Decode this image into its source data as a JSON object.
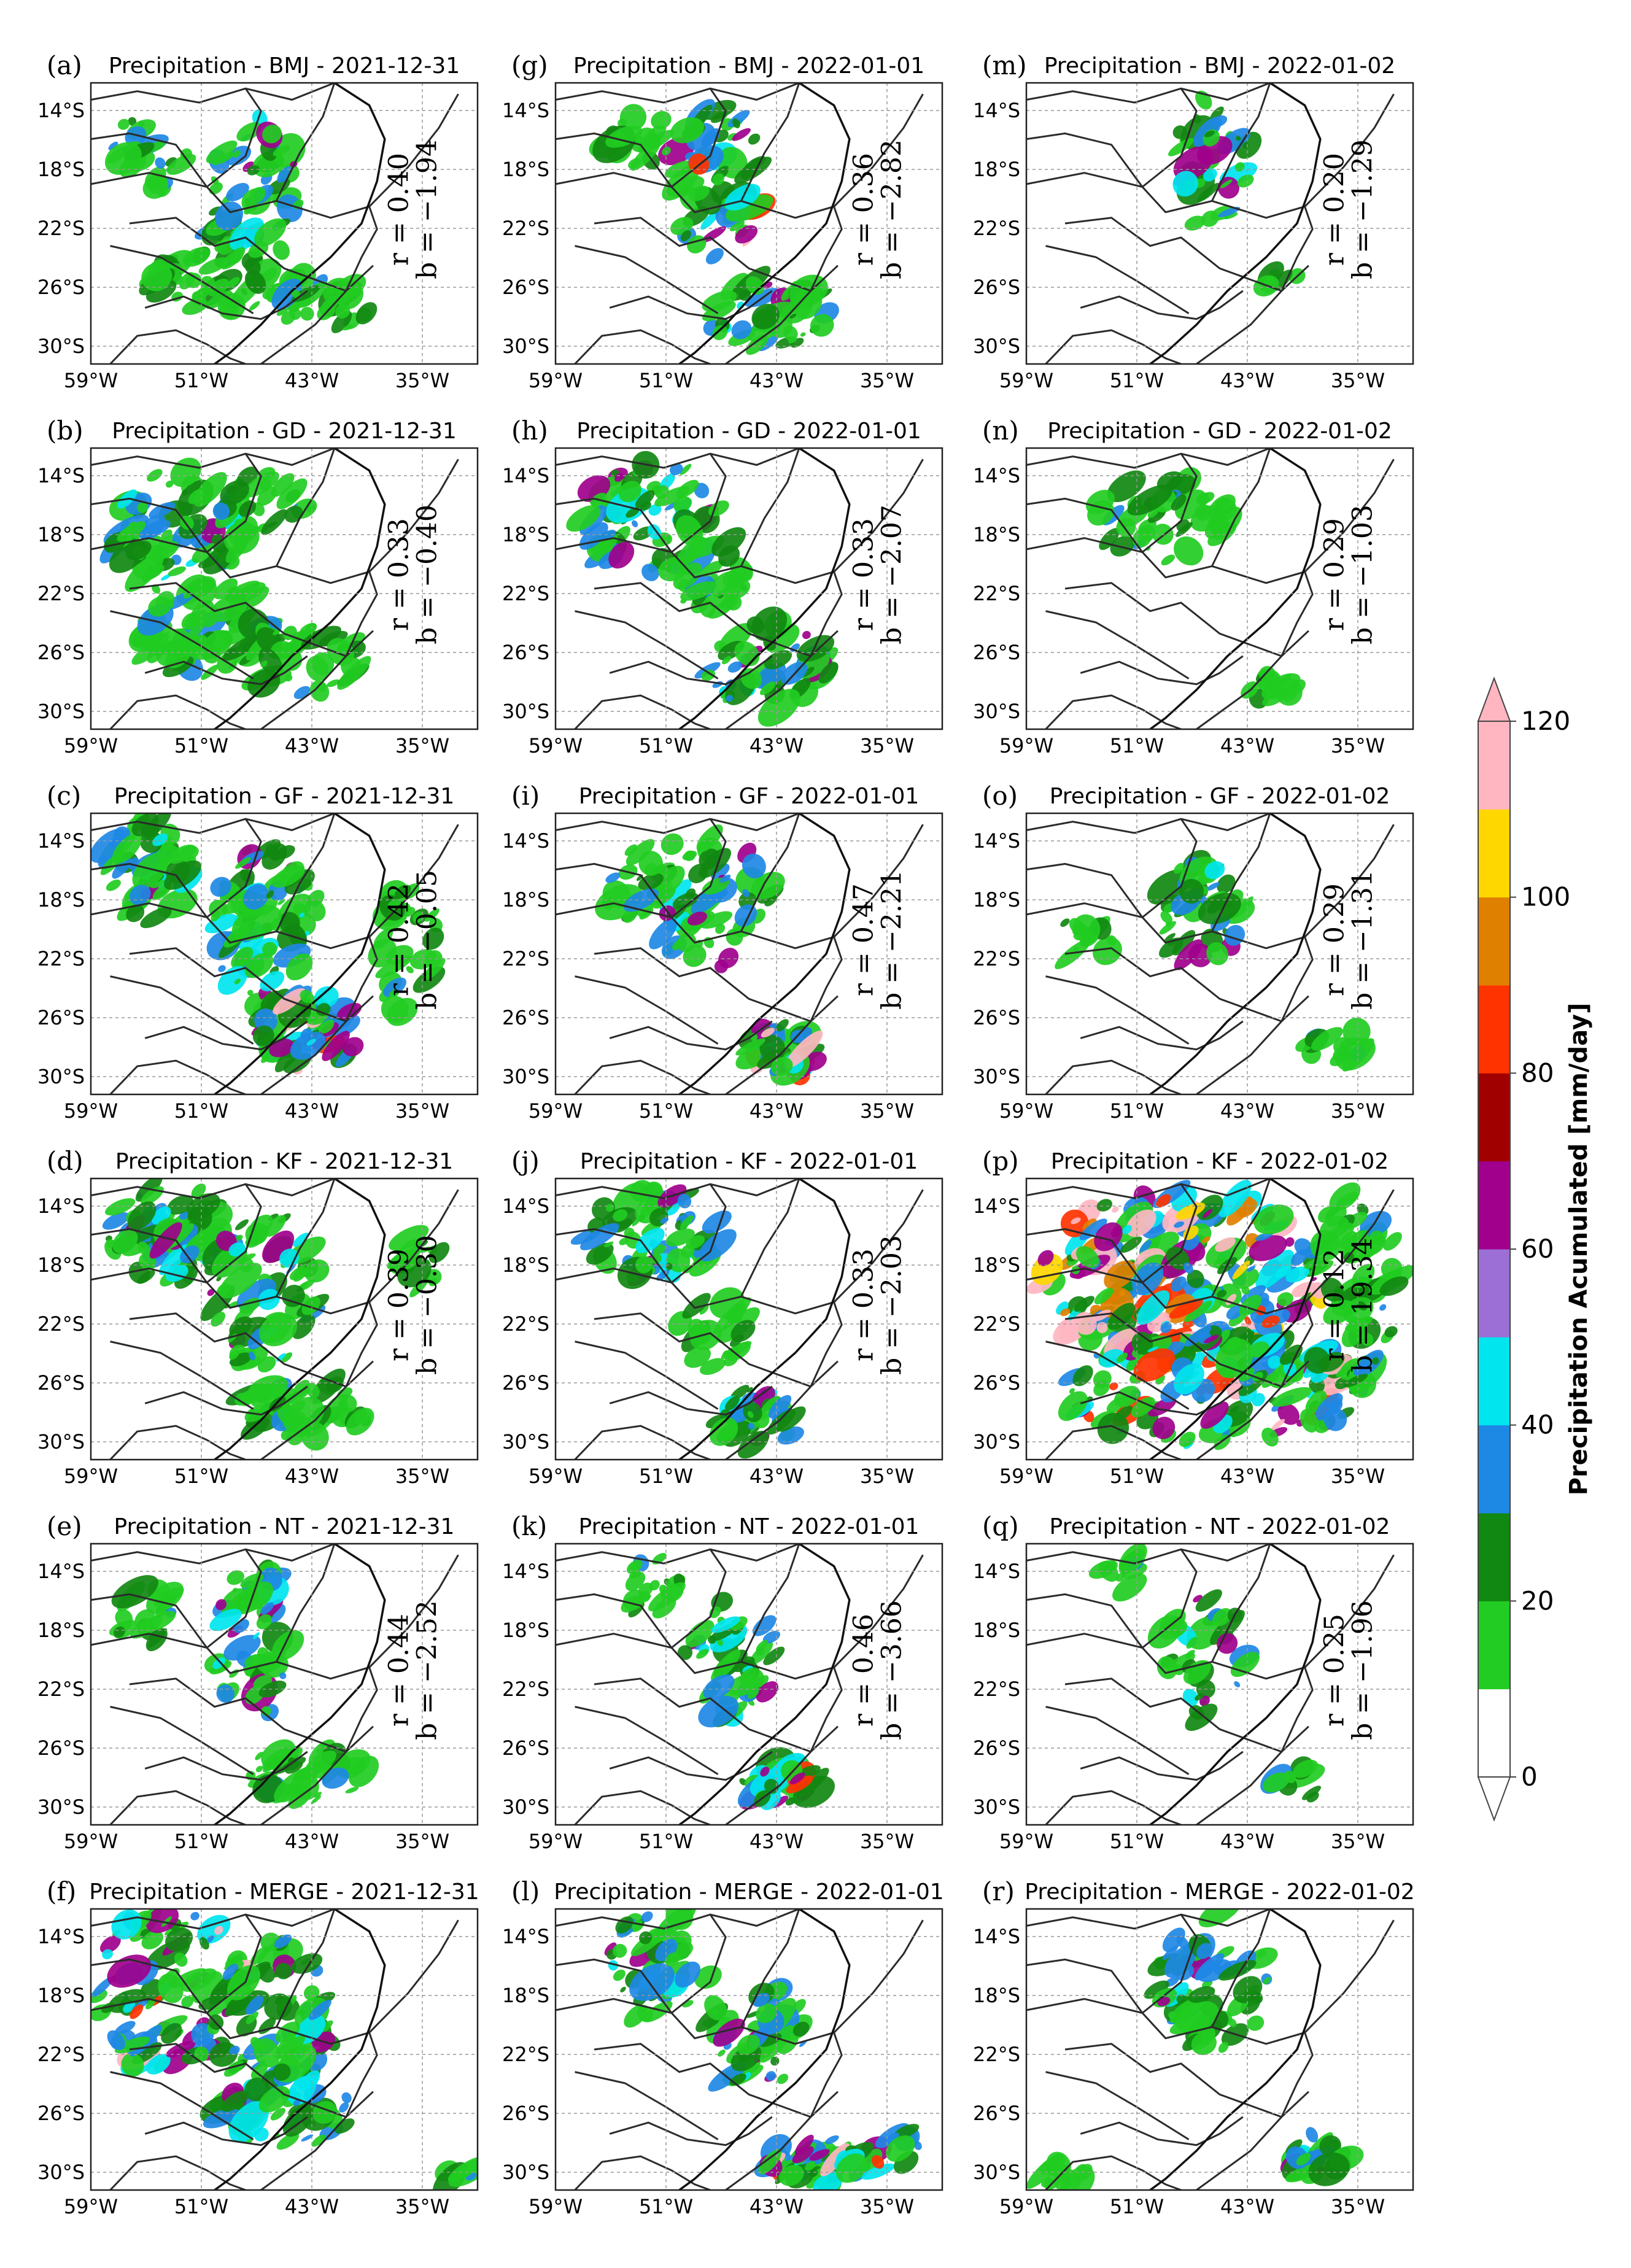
{
  "panels": [
    {
      "id": "a",
      "label": "(a)",
      "title": "Precipitation - BMJ - 2021-12-31",
      "r": "r = 0.40",
      "b": "b = −1.94"
    },
    {
      "id": "b",
      "label": "(b)",
      "title": "Precipitation - GD - 2021-12-31",
      "r": "r = 0.33",
      "b": "b = −0.40"
    },
    {
      "id": "c",
      "label": "(c)",
      "title": "Precipitation - GF - 2021-12-31",
      "r": "r = 0.42",
      "b": "b = −0.05"
    },
    {
      "id": "d",
      "label": "(d)",
      "title": "Precipitation - KF - 2021-12-31",
      "r": "r = 0.39",
      "b": "b = −0.30"
    },
    {
      "id": "e",
      "label": "(e)",
      "title": "Precipitation - NT - 2021-12-31",
      "r": "r = 0.44",
      "b": "b = −2.52"
    },
    {
      "id": "f",
      "label": "(f)",
      "title": "Precipitation - MERGE - 2021-12-31",
      "r": "",
      "b": ""
    },
    {
      "id": "g",
      "label": "(g)",
      "title": "Precipitation - BMJ - 2022-01-01",
      "r": "r = 0.36",
      "b": "b = −2.82"
    },
    {
      "id": "h",
      "label": "(h)",
      "title": "Precipitation - GD - 2022-01-01",
      "r": "r = 0.33",
      "b": "b = −2.07"
    },
    {
      "id": "i",
      "label": "(i)",
      "title": "Precipitation - GF - 2022-01-01",
      "r": "r = 0.47",
      "b": "b = −2.21"
    },
    {
      "id": "j",
      "label": "(j)",
      "title": "Precipitation - KF - 2022-01-01",
      "r": "r = 0.33",
      "b": "b = −2.03"
    },
    {
      "id": "k",
      "label": "(k)",
      "title": "Precipitation - NT - 2022-01-01",
      "r": "r = 0.46",
      "b": "b = −3.66"
    },
    {
      "id": "l",
      "label": "(l)",
      "title": "Precipitation - MERGE - 2022-01-01",
      "r": "",
      "b": ""
    },
    {
      "id": "m",
      "label": "(m)",
      "title": "Precipitation - BMJ - 2022-01-02",
      "r": "r = 0.20",
      "b": "b = −1.29"
    },
    {
      "id": "n",
      "label": "(n)",
      "title": "Precipitation - GD - 2022-01-02",
      "r": "r = 0.29",
      "b": "b = −1.03"
    },
    {
      "id": "o",
      "label": "(o)",
      "title": "Precipitation - GF - 2022-01-02",
      "r": "r = 0.29",
      "b": "b = −1.31"
    },
    {
      "id": "p",
      "label": "(p)",
      "title": "Precipitation - KF - 2022-01-02",
      "r": "r = 0.12",
      "b": "b = 19.34"
    },
    {
      "id": "q",
      "label": "(q)",
      "title": "Precipitation - NT - 2022-01-02",
      "r": "r = 0.25",
      "b": "b = −1.96"
    },
    {
      "id": "r",
      "label": "(r)",
      "title": "Precipitation - MERGE - 2022-01-02",
      "r": "",
      "b": ""
    }
  ],
  "axes": {
    "lat_ticks": [
      "14°S",
      "18°S",
      "22°S",
      "26°S",
      "30°S"
    ],
    "lon_ticks": [
      "59°W",
      "51°W",
      "43°W",
      "35°W"
    ]
  },
  "colorbar": {
    "title": "Precipitation Acumulated [mm/day]",
    "ticks": [
      "0",
      "20",
      "40",
      "60",
      "80",
      "100",
      "120"
    ],
    "colors": [
      "#ffffff",
      "#22cc22",
      "#118811",
      "#1e88e5",
      "#00e5ee",
      "#9c6fd6",
      "#a0008c",
      "#a00000",
      "#ff3300",
      "#e08000",
      "#ffd700",
      "#ffb6c1"
    ]
  }
}
